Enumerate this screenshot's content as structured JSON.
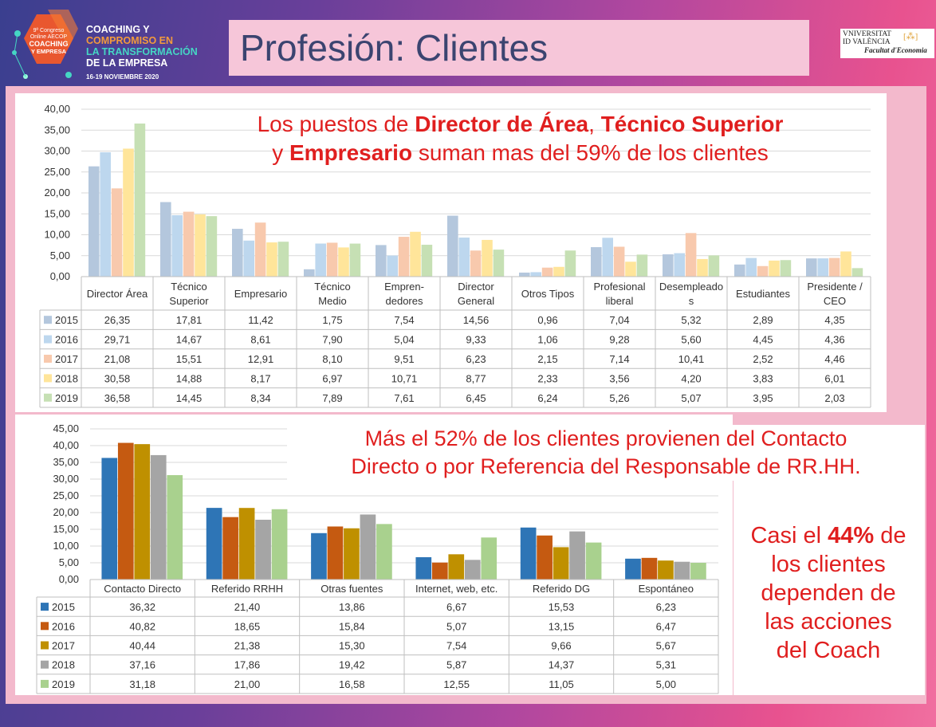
{
  "header": {
    "congress_badge": [
      "9º Congreso",
      "Online AECOP",
      "COACHING",
      "Y EMPRESA"
    ],
    "conf_title": [
      "COACHING Y",
      "COMPROMISO EN",
      "LA TRANSFORMACIÓN",
      "DE LA EMPRESA"
    ],
    "conf_date": "16-19 NOVIEMBRE 2020",
    "slide_title": "Profesión: Clientes",
    "university": [
      "VNIVERSITAT",
      "ID VALÈNCIA",
      "Facultat d'Economia"
    ]
  },
  "colors": {
    "top": {
      "2015": "#b4c7dd",
      "2016": "#bdd7ee",
      "2017": "#f8c9ad",
      "2018": "#ffe59a",
      "2019": "#c6e0b4"
    },
    "bottom": {
      "2015": "#2e75b6",
      "2016": "#c55a11",
      "2017": "#bf9000",
      "2018": "#a5a5a5",
      "2019": "#a9d18e"
    },
    "callout": "#e01f1f"
  },
  "callouts": {
    "top_line1": [
      "Los puestos de ",
      "Director de Área",
      ", ",
      "Técnico Superior"
    ],
    "top_line2": [
      "y ",
      "Empresario",
      " suman mas del 59% de los clientes"
    ],
    "bottom": [
      "Más el 52% de los clientes provienen del Contacto",
      "Directo o por Referencia del Responsable de RR.HH."
    ],
    "right": [
      "Casi el ",
      "44%",
      " de",
      "los clientes",
      "dependen de",
      "las acciones",
      "del Coach"
    ]
  },
  "chart_data": [
    {
      "type": "bar",
      "categories": [
        [
          "Director Área"
        ],
        [
          "Técnico",
          "Superior"
        ],
        [
          "Empresario"
        ],
        [
          "Técnico",
          "Medio"
        ],
        [
          "Empren-",
          "dedores"
        ],
        [
          "Director",
          "General"
        ],
        [
          "Otros Tipos"
        ],
        [
          "Profesional",
          "liberal"
        ],
        [
          "Desempleado",
          "s"
        ],
        [
          "Estudiantes"
        ],
        [
          "Presidente /",
          "CEO"
        ]
      ],
      "yticks": [
        "40,00",
        "35,00",
        "30,00",
        "25,00",
        "20,00",
        "15,00",
        "10,00",
        "5,00",
        "0,00"
      ],
      "ylim": [
        0,
        40
      ],
      "grid": true,
      "series": [
        {
          "name": "2015",
          "values": [
            26.35,
            17.81,
            11.42,
            1.75,
            7.54,
            14.56,
            0.96,
            7.04,
            5.32,
            2.89,
            4.35
          ],
          "labels": [
            "26,35",
            "17,81",
            "11,42",
            "1,75",
            "7,54",
            "14,56",
            "0,96",
            "7,04",
            "5,32",
            "2,89",
            "4,35"
          ]
        },
        {
          "name": "2016",
          "values": [
            29.71,
            14.67,
            8.61,
            7.9,
            5.04,
            9.33,
            1.06,
            9.28,
            5.6,
            4.45,
            4.36
          ],
          "labels": [
            "29,71",
            "14,67",
            "8,61",
            "7,90",
            "5,04",
            "9,33",
            "1,06",
            "9,28",
            "5,60",
            "4,45",
            "4,36"
          ]
        },
        {
          "name": "2017",
          "values": [
            21.08,
            15.51,
            12.91,
            8.1,
            9.51,
            6.23,
            2.15,
            7.14,
            10.41,
            2.52,
            4.46
          ],
          "labels": [
            "21,08",
            "15,51",
            "12,91",
            "8,10",
            "9,51",
            "6,23",
            "2,15",
            "7,14",
            "10,41",
            "2,52",
            "4,46"
          ]
        },
        {
          "name": "2018",
          "values": [
            30.58,
            14.88,
            8.17,
            6.97,
            10.71,
            8.77,
            2.33,
            3.56,
            4.2,
            3.83,
            6.01
          ],
          "labels": [
            "30,58",
            "14,88",
            "8,17",
            "6,97",
            "10,71",
            "8,77",
            "2,33",
            "3,56",
            "4,20",
            "3,83",
            "6,01"
          ]
        },
        {
          "name": "2019",
          "values": [
            36.58,
            14.45,
            8.34,
            7.89,
            7.61,
            6.45,
            6.24,
            5.26,
            5.07,
            3.95,
            2.03
          ],
          "labels": [
            "36,58",
            "14,45",
            "8,34",
            "7,89",
            "7,61",
            "6,45",
            "6,24",
            "5,26",
            "5,07",
            "3,95",
            "2,03"
          ]
        }
      ]
    },
    {
      "type": "bar",
      "categories": [
        [
          "Contacto Directo"
        ],
        [
          "Referido RRHH"
        ],
        [
          "Otras fuentes"
        ],
        [
          "Internet, web, etc."
        ],
        [
          "Referido DG"
        ],
        [
          "Espontáneo"
        ]
      ],
      "yticks": [
        "45,00",
        "40,00",
        "35,00",
        "30,00",
        "25,00",
        "20,00",
        "15,00",
        "10,00",
        "5,00",
        "0,00"
      ],
      "ylim": [
        0,
        45
      ],
      "grid": true,
      "series": [
        {
          "name": "2015",
          "values": [
            36.32,
            21.4,
            13.86,
            6.67,
            15.53,
            6.23
          ],
          "labels": [
            "36,32",
            "21,40",
            "13,86",
            "6,67",
            "15,53",
            "6,23"
          ]
        },
        {
          "name": "2016",
          "values": [
            40.82,
            18.65,
            15.84,
            5.07,
            13.15,
            6.47
          ],
          "labels": [
            "40,82",
            "18,65",
            "15,84",
            "5,07",
            "13,15",
            "6,47"
          ]
        },
        {
          "name": "2017",
          "values": [
            40.44,
            21.38,
            15.3,
            7.54,
            9.66,
            5.67
          ],
          "labels": [
            "40,44",
            "21,38",
            "15,30",
            "7,54",
            "9,66",
            "5,67"
          ]
        },
        {
          "name": "2018",
          "values": [
            37.16,
            17.86,
            19.42,
            5.87,
            14.37,
            5.31
          ],
          "labels": [
            "37,16",
            "17,86",
            "19,42",
            "5,87",
            "14,37",
            "5,31"
          ]
        },
        {
          "name": "2019",
          "values": [
            31.18,
            21.0,
            16.58,
            12.55,
            11.05,
            5.0
          ],
          "labels": [
            "31,18",
            "21,00",
            "16,58",
            "12,55",
            "11,05",
            "5,00"
          ]
        }
      ]
    }
  ]
}
